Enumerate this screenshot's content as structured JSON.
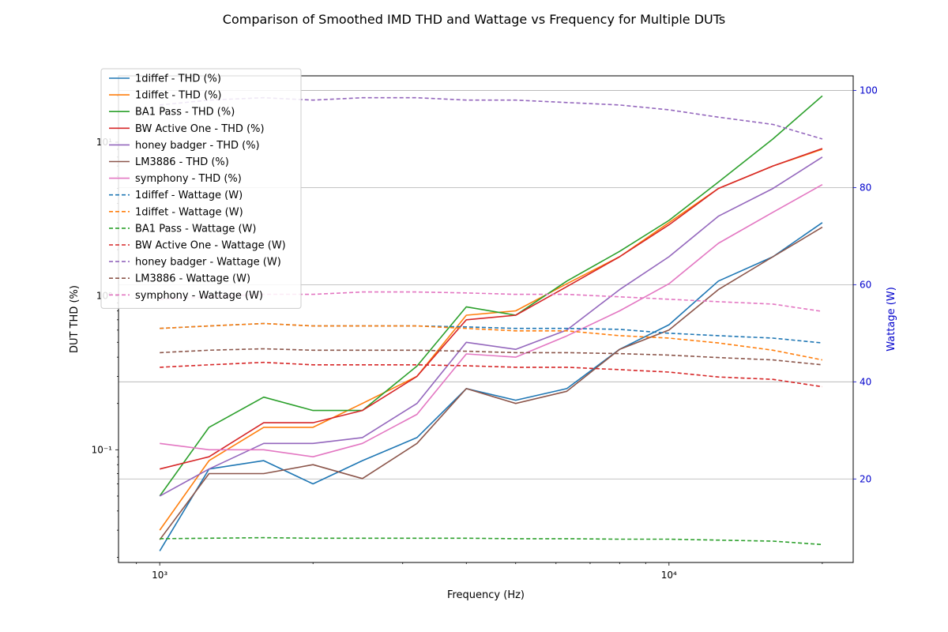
{
  "chart_data": {
    "type": "line",
    "title": "Comparison of Smoothed IMD THD and Wattage vs Frequency for Multiple DUTs",
    "xlabel": "Frequency (Hz)",
    "ylabel": "DUT THD (%)",
    "y2label": "Wattage (W)",
    "xscale": "log",
    "yscale": "log",
    "xlim": [
      830,
      23000
    ],
    "ylim": [
      0.0185,
      27
    ],
    "y2lim": [
      2.8,
      103
    ],
    "x_ticks": [
      {
        "value": 1000,
        "label": "10³"
      },
      {
        "value": 10000,
        "label": "10⁴"
      }
    ],
    "y_ticks": [
      {
        "value": 0.1,
        "label": "10⁻¹"
      },
      {
        "value": 1,
        "label": "10⁰"
      },
      {
        "value": 10,
        "label": "10¹"
      }
    ],
    "y2_ticks": [
      20,
      40,
      60,
      80,
      100
    ],
    "grid": "y2-major",
    "legend_position": "top-left",
    "x": [
      1000,
      1250,
      1600,
      2000,
      2500,
      3200,
      4000,
      5000,
      6300,
      8000,
      10000,
      12500,
      16000,
      20000
    ],
    "series": [
      {
        "name": "1diffef - THD (%)",
        "axis": "left",
        "style": "solid",
        "color": "#1f77b4",
        "values": [
          0.022,
          0.075,
          0.085,
          0.06,
          0.085,
          0.12,
          0.25,
          0.21,
          0.25,
          0.45,
          0.65,
          1.25,
          1.8,
          3.0
        ]
      },
      {
        "name": "1diffet - THD (%)",
        "axis": "left",
        "style": "solid",
        "color": "#ff7f0e",
        "values": [
          0.03,
          0.085,
          0.14,
          0.14,
          0.2,
          0.3,
          0.75,
          0.8,
          1.2,
          1.8,
          3.0,
          5.0,
          7.0,
          9.0
        ]
      },
      {
        "name": "BA1 Pass - THD (%)",
        "axis": "left",
        "style": "solid",
        "color": "#2ca02c",
        "values": [
          0.05,
          0.14,
          0.22,
          0.18,
          0.18,
          0.35,
          0.85,
          0.75,
          1.25,
          1.95,
          3.1,
          5.5,
          10.5,
          20.0
        ]
      },
      {
        "name": "BW Active One - THD (%)",
        "axis": "left",
        "style": "solid",
        "color": "#d62728",
        "values": [
          0.075,
          0.09,
          0.15,
          0.15,
          0.18,
          0.3,
          0.7,
          0.75,
          1.15,
          1.8,
          2.9,
          5.0,
          7.0,
          9.1
        ]
      },
      {
        "name": "honey badger - THD (%)",
        "axis": "left",
        "style": "solid",
        "color": "#9467bd",
        "values": [
          0.05,
          0.075,
          0.11,
          0.11,
          0.12,
          0.2,
          0.5,
          0.45,
          0.6,
          1.1,
          1.8,
          3.3,
          5.0,
          8.0
        ]
      },
      {
        "name": "LM3886 - THD (%)",
        "axis": "left",
        "style": "solid",
        "color": "#8c564b",
        "values": [
          0.026,
          0.07,
          0.07,
          0.08,
          0.065,
          0.11,
          0.25,
          0.2,
          0.24,
          0.45,
          0.6,
          1.1,
          1.8,
          2.8
        ]
      },
      {
        "name": "symphony - THD (%)",
        "axis": "left",
        "style": "solid",
        "color": "#e377c2",
        "values": [
          0.11,
          0.1,
          0.1,
          0.09,
          0.11,
          0.17,
          0.42,
          0.4,
          0.55,
          0.8,
          1.2,
          2.2,
          3.5,
          5.3
        ]
      },
      {
        "name": "1diffef - Wattage (W)",
        "axis": "right",
        "style": "dashed",
        "color": "#1f77b4",
        "values": [
          51,
          51.5,
          52,
          51.5,
          51.5,
          51.5,
          51.3,
          51,
          51,
          50.8,
          50,
          49.5,
          49,
          48
        ]
      },
      {
        "name": "1diffet - Wattage (W)",
        "axis": "right",
        "style": "dashed",
        "color": "#ff7f0e",
        "values": [
          51,
          51.5,
          52,
          51.5,
          51.5,
          51.5,
          51,
          50.5,
          50.5,
          49.5,
          49,
          48,
          46.5,
          44.5
        ]
      },
      {
        "name": "BA1 Pass - Wattage (W)",
        "axis": "right",
        "style": "dashed",
        "color": "#2ca02c",
        "values": [
          7.7,
          7.8,
          7.9,
          7.8,
          7.8,
          7.8,
          7.8,
          7.7,
          7.7,
          7.6,
          7.6,
          7.4,
          7.2,
          6.5
        ]
      },
      {
        "name": "BW Active One - Wattage (W)",
        "axis": "right",
        "style": "dashed",
        "color": "#d62728",
        "values": [
          43,
          43.5,
          44,
          43.5,
          43.5,
          43.5,
          43.3,
          43,
          43,
          42.5,
          42,
          41,
          40.5,
          39
        ]
      },
      {
        "name": "honey badger - Wattage (W)",
        "axis": "right",
        "style": "dashed",
        "color": "#9467bd",
        "values": [
          97,
          98,
          98.5,
          98,
          98.5,
          98.5,
          98,
          98,
          97.5,
          97,
          96,
          94.5,
          93,
          90
        ]
      },
      {
        "name": "LM3886 - Wattage (W)",
        "axis": "right",
        "style": "dashed",
        "color": "#8c564b",
        "values": [
          46,
          46.5,
          46.8,
          46.5,
          46.5,
          46.5,
          46.3,
          46,
          46,
          45.8,
          45.5,
          45,
          44.5,
          43.5
        ]
      },
      {
        "name": "symphony - Wattage (W)",
        "axis": "right",
        "style": "dashed",
        "color": "#e377c2",
        "values": [
          57,
          57.5,
          58,
          58,
          58.5,
          58.5,
          58.3,
          58,
          58,
          57.5,
          57,
          56.5,
          56,
          54.5
        ]
      }
    ]
  }
}
